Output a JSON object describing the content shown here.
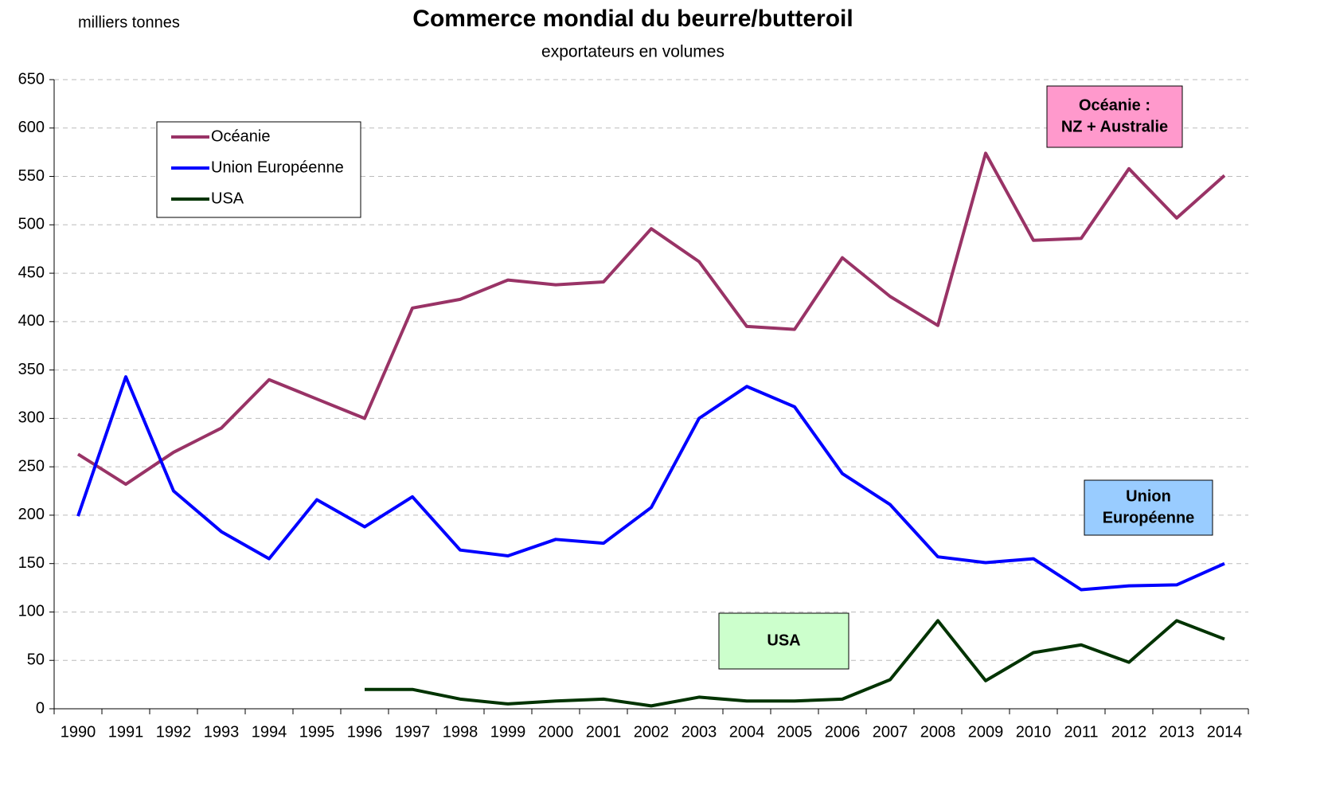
{
  "chart_data": {
    "type": "line",
    "title": "Commerce mondial du beurre/butteroil",
    "subtitle": "exportateurs en volumes",
    "y_label": "milliers tonnes",
    "categories": [
      "1990",
      "1991",
      "1992",
      "1993",
      "1994",
      "1995",
      "1996",
      "1997",
      "1998",
      "1999",
      "2000",
      "2001",
      "2002",
      "2003",
      "2004",
      "2005",
      "2006",
      "2007",
      "2008",
      "2009",
      "2010",
      "2011",
      "2012",
      "2013",
      "2014"
    ],
    "series": [
      {
        "name": "Océanie",
        "color": "#993366",
        "values": [
          263,
          232,
          265,
          290,
          340,
          320,
          300,
          414,
          423,
          443,
          438,
          441,
          496,
          462,
          395,
          392,
          466,
          426,
          396,
          574,
          484,
          486,
          558,
          507,
          551
        ]
      },
      {
        "name": "Union Européenne",
        "color": "#0000ff",
        "values": [
          199,
          343,
          225,
          183,
          155,
          216,
          188,
          219,
          164,
          158,
          175,
          171,
          208,
          300,
          333,
          312,
          243,
          211,
          157,
          151,
          155,
          123,
          127,
          128,
          150
        ]
      },
      {
        "name": "USA",
        "color": "#003300",
        "values": [
          null,
          null,
          null,
          null,
          null,
          null,
          20,
          20,
          10,
          5,
          8,
          10,
          3,
          12,
          8,
          8,
          10,
          30,
          91,
          29,
          58,
          66,
          48,
          91,
          72
        ]
      }
    ],
    "annotations": [
      {
        "lines": [
          "Océanie :",
          "NZ + Australie"
        ],
        "color": "#ff99cc"
      },
      {
        "lines": [
          "Union",
          "Européenne"
        ],
        "color": "#99ccff"
      },
      {
        "lines": [
          "USA"
        ],
        "color": "#ccffcc"
      }
    ],
    "ylim": [
      0,
      650
    ],
    "yticks": [
      0,
      50,
      100,
      150,
      200,
      250,
      300,
      350,
      400,
      450,
      500,
      550,
      600,
      650
    ],
    "grid": true,
    "legend": "upper left"
  }
}
